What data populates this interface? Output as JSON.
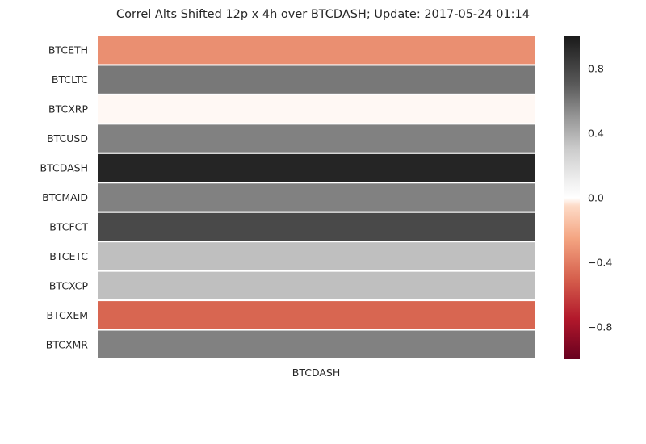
{
  "chart_data": {
    "type": "heatmap",
    "title": "Correl Alts Shifted 12p x 4h over BTCDASH; Update: 2017-05-24 01:14",
    "columns": [
      "BTCDASH"
    ],
    "rows": [
      "BTCETH",
      "BTCLTC",
      "BTCXRP",
      "BTCUSD",
      "BTCDASH",
      "BTCMAID",
      "BTCFCT",
      "BTCETC",
      "BTCXCP",
      "BTCXEM",
      "BTCXMR"
    ],
    "values": [
      -0.33,
      0.6,
      -0.01,
      0.57,
      0.95,
      0.57,
      0.78,
      0.35,
      0.35,
      -0.48,
      0.57
    ],
    "colorbar": {
      "vmin": -1.0,
      "vmax": 1.0,
      "ticks": [
        0.8,
        0.4,
        0.0,
        -0.4,
        -0.8
      ],
      "tick_labels": [
        "0.8",
        "0.4",
        "0.0",
        "−0.4",
        "−0.8"
      ],
      "colormap": "RdGy",
      "colormap_stops": [
        {
          "v": -1.0,
          "color": "#67001f"
        },
        {
          "v": -0.75,
          "color": "#b2182b"
        },
        {
          "v": -0.5,
          "color": "#d6604d"
        },
        {
          "v": -0.25,
          "color": "#f4a582"
        },
        {
          "v": -0.05,
          "color": "#fddbc7"
        },
        {
          "v": 0.0,
          "color": "#ffffff"
        },
        {
          "v": 0.1,
          "color": "#f0f0f0"
        },
        {
          "v": 0.3,
          "color": "#cccccc"
        },
        {
          "v": 0.5,
          "color": "#969696"
        },
        {
          "v": 0.7,
          "color": "#5a5a5a"
        },
        {
          "v": 1.0,
          "color": "#1a1a1a"
        }
      ]
    }
  }
}
